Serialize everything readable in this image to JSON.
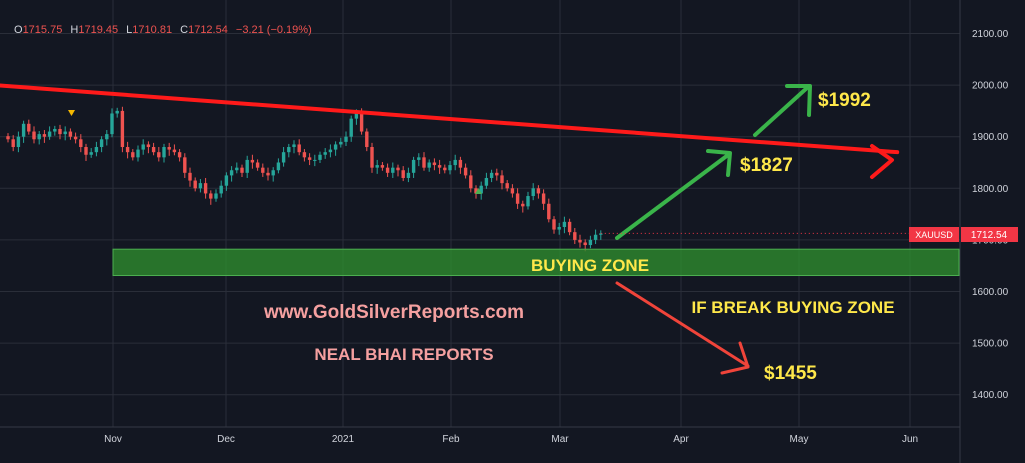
{
  "header": {
    "o_label": "O",
    "o": "1715.75",
    "h_label": "H",
    "h": "1719.45",
    "l_label": "L",
    "l": "1710.81",
    "c_label": "C",
    "c": "1712.54",
    "change": "−3.21 (−0.19%)"
  },
  "colors": {
    "background": "#131722",
    "grid": "#2a2e39",
    "up": "#26a69a",
    "down": "#ef5350",
    "trendline": "#ff1a1a",
    "buy_zone": "#2e8b2e",
    "green_arrow": "#3ab44a",
    "red_arrow": "#f0443a",
    "label_yellow": "#ffe84a",
    "label_pink": "#f5a0a0",
    "price_tag": "#f23645"
  },
  "watermark": {
    "site": "www.GoldSilverReports.com",
    "name": "NEAL BHAI REPORTS"
  },
  "price_tag": {
    "symbol": "XAUUSD",
    "value": "1712.54"
  },
  "annotations": {
    "buying_zone": "BUYING ZONE",
    "if_break": "IF BREAK BUYING ZONE",
    "target_1": "$1827",
    "target_2": "$1992",
    "target_down": "$1455"
  },
  "chart_data": {
    "type": "candlestick",
    "x_ticks": [
      "Nov",
      "Dec",
      "2021",
      "Feb",
      "Mar",
      "Apr",
      "May",
      "Jun"
    ],
    "y_ticks": [
      "2100.00",
      "2000.00",
      "1900.00",
      "1800.00",
      "1700.00",
      "1600.00",
      "1500.00",
      "1400.00"
    ],
    "ylim": [
      1340,
      2140
    ],
    "grid": true,
    "closes": [
      1895,
      1880,
      1900,
      1925,
      1910,
      1895,
      1905,
      1900,
      1910,
      1915,
      1905,
      1910,
      1900,
      1895,
      1880,
      1865,
      1870,
      1880,
      1895,
      1905,
      1945,
      1950,
      1880,
      1870,
      1860,
      1875,
      1885,
      1880,
      1870,
      1860,
      1880,
      1875,
      1870,
      1860,
      1830,
      1815,
      1800,
      1810,
      1790,
      1780,
      1790,
      1805,
      1825,
      1835,
      1840,
      1830,
      1855,
      1850,
      1840,
      1830,
      1825,
      1835,
      1850,
      1870,
      1880,
      1885,
      1870,
      1860,
      1855,
      1855,
      1865,
      1870,
      1875,
      1885,
      1890,
      1900,
      1935,
      1945,
      1910,
      1880,
      1840,
      1845,
      1840,
      1830,
      1840,
      1835,
      1820,
      1830,
      1855,
      1860,
      1840,
      1850,
      1845,
      1840,
      1835,
      1845,
      1855,
      1840,
      1825,
      1800,
      1790,
      1805,
      1820,
      1830,
      1825,
      1810,
      1800,
      1790,
      1770,
      1765,
      1785,
      1800,
      1790,
      1770,
      1740,
      1720,
      1725,
      1735,
      1715,
      1700,
      1695,
      1690,
      1700,
      1710,
      1712.54
    ],
    "zones": [
      {
        "label": "BUYING ZONE",
        "from": 1631,
        "to": 1682
      }
    ],
    "trendline": [
      [
        -56,
        2040
      ],
      [
        171,
        1870
      ]
    ],
    "targets": [
      1827,
      1992,
      1455
    ]
  }
}
